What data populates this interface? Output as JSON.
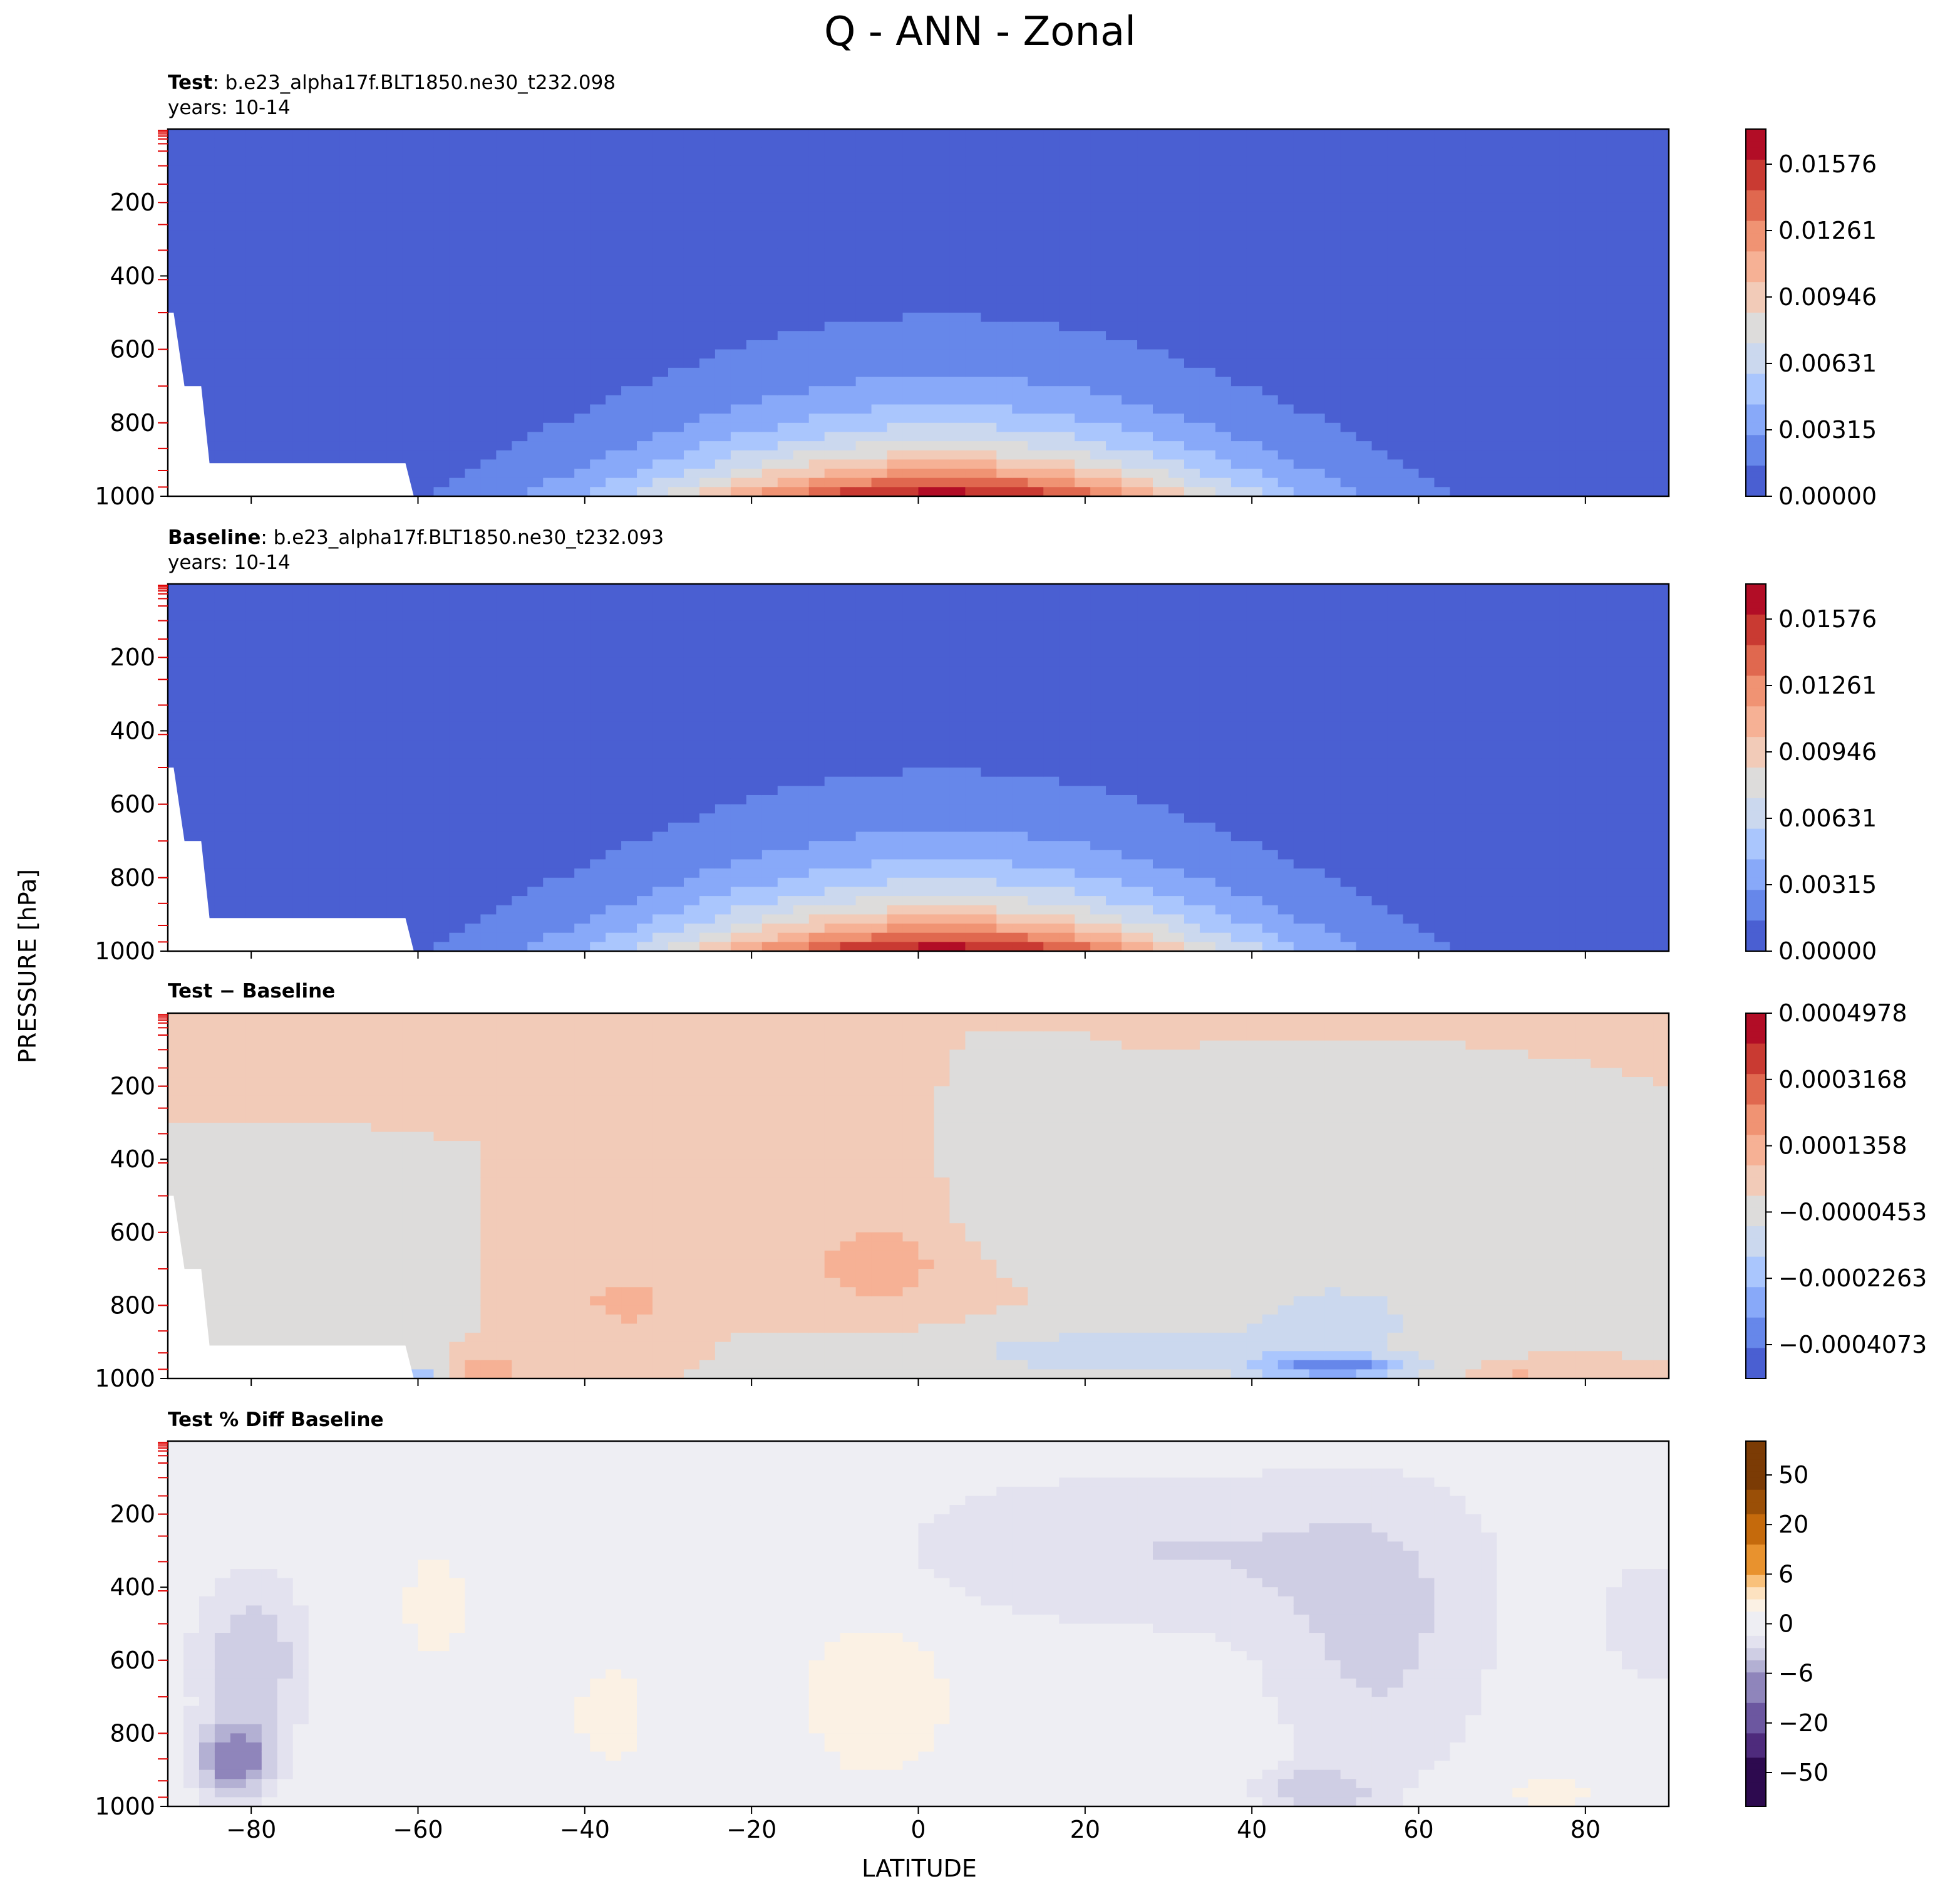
{
  "figure_title": "Q - ANN - Zonal",
  "ylabel": "PRESSURE [hPa]",
  "xlabel": "LATITUDE",
  "panels": [
    {
      "label_bold": "Test",
      "label_rest": ": b.e23_alpha17f.BLT1850.ne30_t232.098",
      "years": "years: 10-14"
    },
    {
      "label_bold": "Baseline",
      "label_rest": ": b.e23_alpha17f.BLT1850.ne30_t232.093",
      "years": "years: 10-14"
    },
    {
      "label_bold": "Test − Baseline",
      "label_rest": "",
      "years": ""
    },
    {
      "label_bold": "Test % Diff Baseline",
      "label_rest": "",
      "years": ""
    }
  ],
  "colors": {
    "coolwarm": [
      "#4a5fd2",
      "#6687ea",
      "#88a9f9",
      "#aac6fd",
      "#cbd8ee",
      "#dddcdb",
      "#f2cbb8",
      "#f6b195",
      "#f09373",
      "#e0684f",
      "#c93a32",
      "#b20d26"
    ],
    "puor_neg": [
      "#2d0a4f",
      "#4e2b7c",
      "#6c57a0",
      "#8f85bb",
      "#b3b0d3",
      "#cfcee4",
      "#e3e2ef",
      "#eeeef3"
    ],
    "puor_pos": [
      "#eeeef3",
      "#fbf1e4",
      "#fde2c0",
      "#f9c17b",
      "#e8922e",
      "#c56a0c",
      "#9a4f07",
      "#7b3b05"
    ]
  },
  "chart_data": [
    {
      "type": "heatmap",
      "panel": "Test",
      "x_axis": {
        "label": "LATITUDE",
        "range": [
          -90,
          90
        ],
        "ticks": [
          -80,
          -60,
          -40,
          -20,
          0,
          20,
          40,
          60,
          80
        ]
      },
      "y_axis": {
        "label": "PRESSURE [hPa]",
        "range": [
          1000,
          0
        ],
        "ticks": [
          200,
          400,
          600,
          800,
          1000
        ]
      },
      "colorbar_ticks": [
        "0.01576",
        "0.01261",
        "0.00946",
        "0.00631",
        "0.00315",
        "0.00000"
      ],
      "colorbar_range": [
        0.0,
        0.0173
      ],
      "field": {
        "form": "bell",
        "peak_value": 0.0172,
        "peak_lat": 3,
        "surface_lat_width": 36,
        "height_decay_hPa": 165,
        "floor": 0.0006
      },
      "contour_top_hPa_at_lat": {
        "lat": [
          -90,
          -60,
          -30,
          -10,
          5,
          30,
          60,
          90
        ],
        "p": [
          920,
          780,
          560,
          460,
          450,
          550,
          700,
          920
        ]
      }
    },
    {
      "type": "heatmap",
      "panel": "Baseline",
      "x_axis": {
        "label": "LATITUDE",
        "range": [
          -90,
          90
        ],
        "ticks": [
          -80,
          -60,
          -40,
          -20,
          0,
          20,
          40,
          60,
          80
        ]
      },
      "y_axis": {
        "label": "PRESSURE [hPa]",
        "range": [
          1000,
          0
        ],
        "ticks": [
          200,
          400,
          600,
          800,
          1000
        ]
      },
      "colorbar_ticks": [
        "0.01576",
        "0.01261",
        "0.00946",
        "0.00631",
        "0.00315",
        "0.00000"
      ],
      "colorbar_range": [
        0.0,
        0.0173
      ],
      "field": {
        "form": "bell",
        "peak_value": 0.0172,
        "peak_lat": 3,
        "surface_lat_width": 36,
        "height_decay_hPa": 165,
        "floor": 0.0006
      }
    },
    {
      "type": "heatmap",
      "panel": "Test − Baseline",
      "x_axis": {
        "label": "LATITUDE",
        "range": [
          -90,
          90
        ],
        "ticks": [
          -80,
          -60,
          -40,
          -20,
          0,
          20,
          40,
          60,
          80
        ]
      },
      "y_axis": {
        "label": "PRESSURE [hPa]",
        "range": [
          1000,
          0
        ],
        "ticks": [
          200,
          400,
          600,
          800,
          1000
        ]
      },
      "colorbar_ticks": [
        "0.0004978",
        "0.0003168",
        "0.0001358",
        "−0.0000453",
        "−0.0002263",
        "−0.0004073"
      ],
      "colorbar_range": [
        -0.000498,
        0.000498
      ],
      "features": [
        {
          "lat": -5,
          "p": 690,
          "value": 0.00015,
          "sigma_lat": 8,
          "sigma_p": 110
        },
        {
          "lat": -35,
          "p": 790,
          "value": 0.00012,
          "sigma_lat": 6,
          "sigma_p": 80
        },
        {
          "lat": 12,
          "p": 570,
          "value": -8e-05,
          "sigma_lat": 5,
          "sigma_p": 90
        },
        {
          "lat": 50,
          "p": 840,
          "value": -0.00012,
          "sigma_lat": 12,
          "sigma_p": 130
        },
        {
          "lat": 25,
          "p": 930,
          "value": -0.00016,
          "sigma_lat": 20,
          "sigma_p": 60
        },
        {
          "lat": 50,
          "p": 970,
          "value": -0.00034,
          "sigma_lat": 9,
          "sigma_p": 30
        },
        {
          "lat": -78,
          "p": 830,
          "value": -7e-05,
          "sigma_lat": 9,
          "sigma_p": 90
        },
        {
          "lat": -52,
          "p": 975,
          "value": 0.00018,
          "sigma_lat": 3,
          "sigma_p": 30
        },
        {
          "lat": -60,
          "p": 985,
          "value": -0.0002,
          "sigma_lat": 3,
          "sigma_p": 25
        },
        {
          "lat": 72,
          "p": 985,
          "value": 9e-05,
          "sigma_lat": 6,
          "sigma_p": 25
        }
      ]
    },
    {
      "type": "heatmap",
      "panel": "Test % Diff Baseline",
      "x_axis": {
        "label": "LATITUDE",
        "range": [
          -90,
          90
        ],
        "ticks": [
          -80,
          -60,
          -40,
          -20,
          0,
          20,
          40,
          60,
          80
        ]
      },
      "y_axis": {
        "label": "PRESSURE [hPa]",
        "range": [
          1000,
          0
        ],
        "ticks": [
          200,
          400,
          600,
          800,
          1000
        ]
      },
      "colorbar_ticks": [
        "50",
        "20",
        "6",
        "0",
        "−6",
        "−20",
        "−50"
      ],
      "colorbar_range": [
        -80,
        80
      ],
      "features": [
        {
          "lat": -82,
          "p": 870,
          "value": -14,
          "sigma_lat": 4,
          "sigma_p": 90
        },
        {
          "lat": -80,
          "p": 600,
          "value": -5,
          "sigma_lat": 6,
          "sigma_p": 200
        },
        {
          "lat": -5,
          "p": 700,
          "value": 3,
          "sigma_lat": 8,
          "sigma_p": 200
        },
        {
          "lat": -37,
          "p": 750,
          "value": 1.5,
          "sigma_lat": 6,
          "sigma_p": 180
        },
        {
          "lat": -58,
          "p": 450,
          "value": 1.5,
          "sigma_lat": 5,
          "sigma_p": 200
        },
        {
          "lat": 30,
          "p": 300,
          "value": -3,
          "sigma_lat": 30,
          "sigma_p": 200
        },
        {
          "lat": 55,
          "p": 550,
          "value": -3.5,
          "sigma_lat": 12,
          "sigma_p": 350
        },
        {
          "lat": 48,
          "p": 960,
          "value": -5,
          "sigma_lat": 6,
          "sigma_p": 60
        },
        {
          "lat": 88,
          "p": 500,
          "value": -3,
          "sigma_lat": 5,
          "sigma_p": 150
        },
        {
          "lat": 76,
          "p": 960,
          "value": 2,
          "sigma_lat": 5,
          "sigma_p": 40
        }
      ]
    }
  ]
}
